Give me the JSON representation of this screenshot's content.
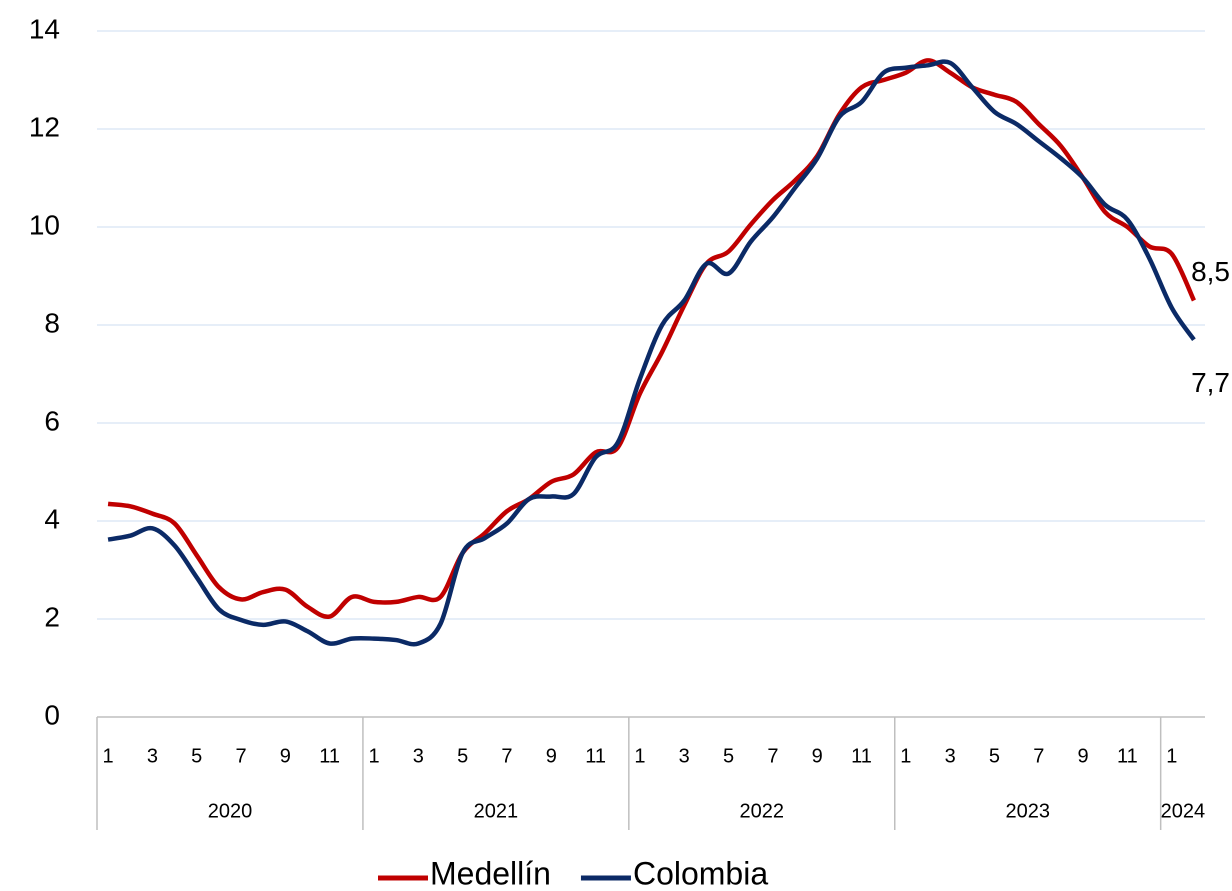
{
  "chart_data": {
    "type": "line",
    "categories": [
      "1",
      null,
      "3",
      null,
      "5",
      null,
      "7",
      null,
      "9",
      null,
      "11",
      null,
      "1",
      null,
      "3",
      null,
      "5",
      null,
      "7",
      null,
      "9",
      null,
      "11",
      null,
      "1",
      null,
      "3",
      null,
      "5",
      null,
      "7",
      null,
      "9",
      null,
      "11",
      null,
      "1",
      null,
      "3",
      null,
      "5",
      null,
      "7",
      null,
      "9",
      null,
      "11",
      null,
      "1",
      null
    ],
    "groups": [
      {
        "label": "2020",
        "size": 12
      },
      {
        "label": "2021",
        "size": 12
      },
      {
        "label": "2022",
        "size": 12
      },
      {
        "label": "2023",
        "size": 12
      },
      {
        "label": "2024",
        "size": 2
      }
    ],
    "series": [
      {
        "name": "Medellín",
        "color": "#c00000",
        "values": [
          4.35,
          4.3,
          4.15,
          3.95,
          3.3,
          2.65,
          2.4,
          2.55,
          2.6,
          2.25,
          2.05,
          2.45,
          2.35,
          2.35,
          2.45,
          2.45,
          3.35,
          3.75,
          4.2,
          4.45,
          4.8,
          4.95,
          5.4,
          5.5,
          6.6,
          7.45,
          8.4,
          9.25,
          9.5,
          10.05,
          10.55,
          10.95,
          11.45,
          12.3,
          12.85,
          13.0,
          13.15,
          13.4,
          13.15,
          12.85,
          12.7,
          12.55,
          12.1,
          11.65,
          11.0,
          10.3,
          10.0,
          9.6,
          9.45,
          8.5
        ],
        "value_labels": [
          null,
          null,
          null,
          null,
          null,
          null,
          null,
          null,
          null,
          null,
          null,
          null,
          null,
          null,
          null,
          null,
          null,
          null,
          null,
          null,
          null,
          null,
          null,
          null,
          null,
          null,
          null,
          null,
          null,
          null,
          null,
          null,
          null,
          null,
          null,
          null,
          null,
          null,
          null,
          null,
          null,
          null,
          null,
          null,
          null,
          null,
          null,
          null,
          null,
          "8,5"
        ]
      },
      {
        "name": "Colombia",
        "color": "#0b2a66",
        "values": [
          3.62,
          3.7,
          3.85,
          3.5,
          2.85,
          2.2,
          1.98,
          1.88,
          1.95,
          1.75,
          1.5,
          1.6,
          1.6,
          1.57,
          1.5,
          1.9,
          3.35,
          3.65,
          3.95,
          4.45,
          4.5,
          4.55,
          5.3,
          5.6,
          6.9,
          8.0,
          8.5,
          9.25,
          9.05,
          9.7,
          10.2,
          10.8,
          11.4,
          12.25,
          12.55,
          13.15,
          13.25,
          13.3,
          13.35,
          12.85,
          12.35,
          12.1,
          11.75,
          11.4,
          11.0,
          10.45,
          10.15,
          9.35,
          8.35,
          7.7
        ],
        "value_labels": [
          null,
          null,
          null,
          null,
          null,
          null,
          null,
          null,
          null,
          null,
          null,
          null,
          null,
          null,
          null,
          null,
          null,
          null,
          null,
          null,
          null,
          null,
          null,
          null,
          null,
          null,
          null,
          null,
          null,
          null,
          null,
          null,
          null,
          null,
          null,
          null,
          null,
          null,
          null,
          null,
          null,
          null,
          null,
          null,
          null,
          null,
          null,
          null,
          null,
          "7,7"
        ]
      }
    ],
    "ylim": [
      0,
      14
    ],
    "yticks": [
      0,
      2,
      4,
      6,
      8,
      10,
      12,
      14
    ],
    "grid": true,
    "legend": "bottom"
  }
}
